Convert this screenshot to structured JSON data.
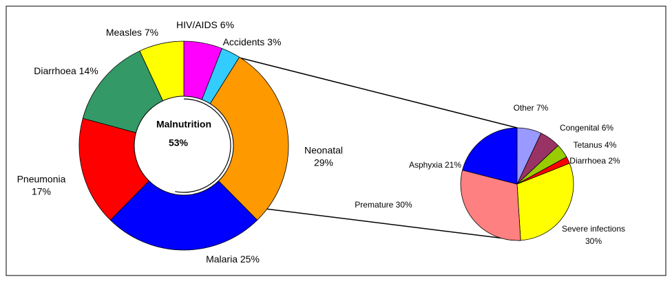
{
  "chart_data": [
    {
      "type": "donut",
      "categories": [
        "HIV/AIDS",
        "Accidents",
        "Neonatal",
        "Malaria",
        "Pneumonia",
        "Diarrhoea",
        "Measles"
      ],
      "values": [
        6,
        3,
        29,
        25,
        17,
        14,
        7
      ],
      "value_labels": [
        "6%",
        "3%",
        "29%",
        "25%",
        "17%",
        "14%",
        "7%"
      ],
      "colors": [
        "#ff00ff",
        "#33ccff",
        "#ff9900",
        "#0000ff",
        "#ff0000",
        "#339966",
        "#ffff00"
      ],
      "center": {
        "label": "Malnutrition",
        "value": 53,
        "value_label": "53%"
      }
    },
    {
      "type": "pie",
      "categories": [
        "Other",
        "Congenital",
        "Tetanus",
        "Diarrhoea",
        "Severe infections",
        "Premature",
        "Asphyxia"
      ],
      "values": [
        7,
        6,
        4,
        2,
        30,
        30,
        21
      ],
      "value_labels": [
        "7%",
        "6%",
        "4%",
        "2%",
        "30%",
        "30%",
        "21%"
      ],
      "colors": [
        "#9999ff",
        "#993366",
        "#99cc00",
        "#ff0000",
        "#ffff00",
        "#ff8080",
        "#0000ff"
      ]
    }
  ]
}
